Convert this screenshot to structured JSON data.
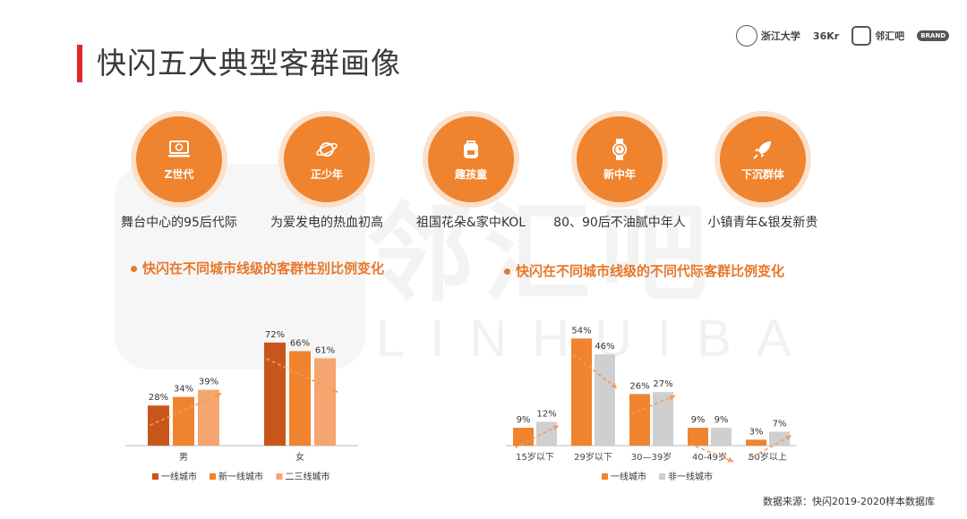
{
  "title": "快闪五大典型客群画像",
  "logos": [
    "浙江大学",
    "36Kr",
    "邻汇吧",
    "BRAND"
  ],
  "watermark": {
    "cn": "邻汇吧",
    "en": "LINHUIBA"
  },
  "personas": [
    {
      "name": "Z世代",
      "desc": "舞台中心的95后代际",
      "icon": "computer-icon"
    },
    {
      "name": "正少年",
      "desc": "为爱发电的热血初高",
      "icon": "planet-icon"
    },
    {
      "name": "趣孩童",
      "desc": "祖国花朵&家中KOL",
      "icon": "backpack-icon"
    },
    {
      "name": "新中年",
      "desc": "80、90后不油腻中年人",
      "icon": "watch-icon"
    },
    {
      "name": "下沉群体",
      "desc": "小镇青年&银发新贵",
      "icon": "rocket-icon"
    }
  ],
  "colors": {
    "accent": "#f0832e",
    "dark_orange": "#c8561a",
    "light_orange": "#f5a56e",
    "grey": "#cfcfcf",
    "title_bar": "#e0262b"
  },
  "chart_data": [
    {
      "type": "bar",
      "title": "快闪在不同城市线级的客群性别比例变化",
      "categories": [
        "男",
        "女"
      ],
      "series": [
        {
          "name": "一线城市",
          "values": [
            28,
            72
          ]
        },
        {
          "name": "新一线城市",
          "values": [
            34,
            66
          ]
        },
        {
          "name": "二三线城市",
          "values": [
            39,
            61
          ]
        }
      ],
      "data_labels": [
        [
          "28%",
          "34%",
          "39%"
        ],
        [
          "72%",
          "66%",
          "61%"
        ]
      ],
      "ylim": [
        0,
        80
      ],
      "legend": "bottom"
    },
    {
      "type": "bar",
      "title": "快闪在不同城市线级的不同代际客群比例变化",
      "categories": [
        "15岁以下",
        "29岁以下",
        "30—39岁",
        "40-49岁",
        "50岁以上"
      ],
      "series": [
        {
          "name": "一线城市",
          "values": [
            9,
            54,
            26,
            9,
            3
          ]
        },
        {
          "name": "非一线城市",
          "values": [
            12,
            46,
            27,
            9,
            7
          ]
        }
      ],
      "data_labels": [
        [
          "9%",
          "12%"
        ],
        [
          "54%",
          "46%"
        ],
        [
          "26%",
          "27%"
        ],
        [
          "9%",
          "9%"
        ],
        [
          "3%",
          "7%"
        ]
      ],
      "ylim": [
        0,
        60
      ],
      "legend": "bottom"
    }
  ],
  "source": "数据来源：快闪2019-2020样本数据库"
}
